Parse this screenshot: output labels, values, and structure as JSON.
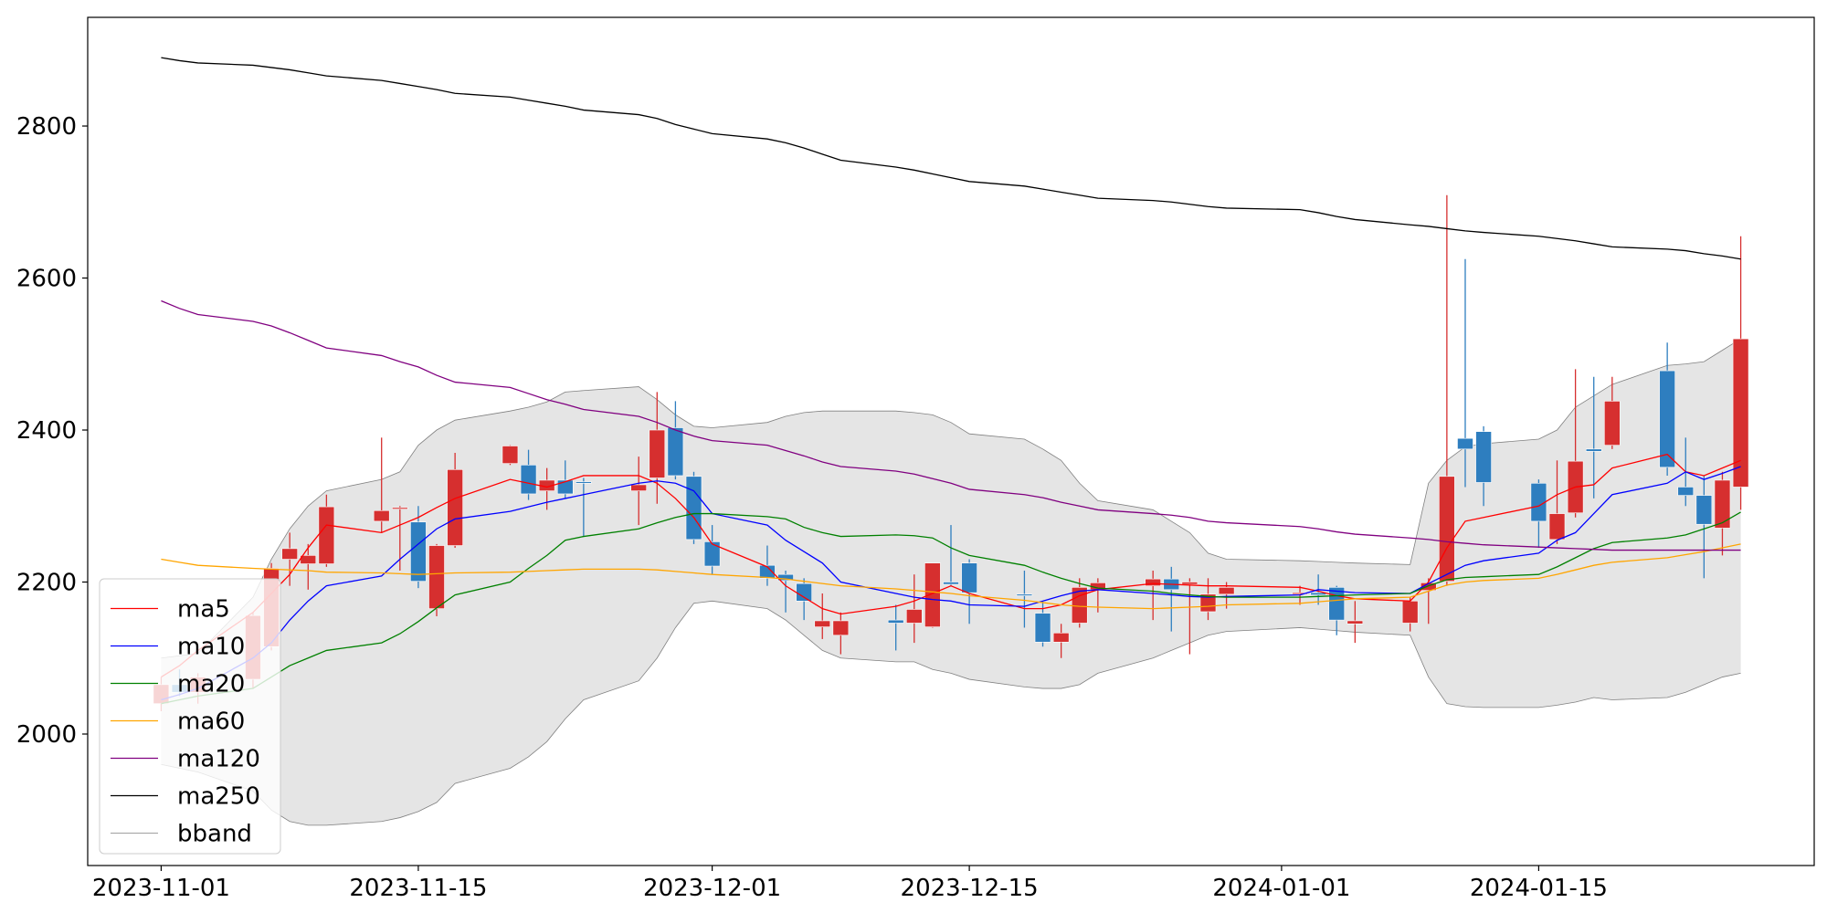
{
  "chart_data": {
    "type": "candlestick",
    "x": [
      "2023-11-01",
      "2023-11-02",
      "2023-11-03",
      "2023-11-06",
      "2023-11-07",
      "2023-11-08",
      "2023-11-09",
      "2023-11-10",
      "2023-11-13",
      "2023-11-14",
      "2023-11-15",
      "2023-11-16",
      "2023-11-17",
      "2023-11-20",
      "2023-11-21",
      "2023-11-22",
      "2023-11-23",
      "2023-11-24",
      "2023-11-27",
      "2023-11-28",
      "2023-11-29",
      "2023-11-30",
      "2023-12-01",
      "2023-12-04",
      "2023-12-05",
      "2023-12-06",
      "2023-12-07",
      "2023-12-08",
      "2023-12-11",
      "2023-12-12",
      "2023-12-13",
      "2023-12-14",
      "2023-12-15",
      "2023-12-18",
      "2023-12-19",
      "2023-12-20",
      "2023-12-21",
      "2023-12-22",
      "2023-12-25",
      "2023-12-26",
      "2023-12-27",
      "2023-12-28",
      "2023-12-29",
      "2024-01-02",
      "2024-01-03",
      "2024-01-04",
      "2024-01-05",
      "2024-01-08",
      "2024-01-09",
      "2024-01-10",
      "2024-01-11",
      "2024-01-12",
      "2024-01-15",
      "2024-01-16",
      "2024-01-17",
      "2024-01-18",
      "2024-01-19",
      "2024-01-22",
      "2024-01-23",
      "2024-01-24",
      "2024-01-25",
      "2024-01-26"
    ],
    "candles": {
      "up_color": "#d62f2f",
      "down_color": "#2e7ebf",
      "open": [
        2040,
        2065,
        2055,
        2072,
        2115,
        2230,
        2224,
        2224,
        2280,
        2296,
        2279,
        2165,
        2248,
        2356,
        2354,
        2320,
        2334,
        2332,
        2320,
        2337,
        2403,
        2339,
        2253,
        2222,
        2210,
        2198,
        2141,
        2130,
        2150,
        2146,
        2141,
        2200,
        2225,
        2184,
        2159,
        2121,
        2146,
        2190,
        2195,
        2204,
        2197,
        2161,
        2184,
        2184,
        2186,
        2193,
        2145,
        2146,
        2189,
        2201,
        2389,
        2398,
        2330,
        2256,
        2291,
        2375,
        2380,
        2478,
        2325,
        2314,
        2271,
        2325
      ],
      "high": [
        2075,
        2085,
        2080,
        2160,
        2225,
        2265,
        2250,
        2315,
        2390,
        2300,
        2300,
        2250,
        2370,
        2380,
        2374,
        2350,
        2360,
        2337,
        2365,
        2450,
        2438,
        2345,
        2275,
        2248,
        2215,
        2205,
        2185,
        2160,
        2170,
        2210,
        2225,
        2275,
        2230,
        2215,
        2175,
        2145,
        2205,
        2205,
        2215,
        2220,
        2205,
        2205,
        2200,
        2195,
        2210,
        2195,
        2175,
        2180,
        2205,
        2709,
        2625,
        2405,
        2335,
        2360,
        2480,
        2470,
        2470,
        2515,
        2390,
        2340,
        2345,
        2655
      ],
      "low": [
        2030,
        2050,
        2040,
        2060,
        2110,
        2195,
        2190,
        2220,
        2265,
        2215,
        2192,
        2155,
        2245,
        2354,
        2308,
        2295,
        2310,
        2260,
        2275,
        2303,
        2335,
        2250,
        2210,
        2195,
        2160,
        2150,
        2125,
        2105,
        2110,
        2120,
        2140,
        2195,
        2145,
        2140,
        2115,
        2100,
        2140,
        2160,
        2150,
        2135,
        2105,
        2150,
        2165,
        2170,
        2170,
        2130,
        2120,
        2135,
        2145,
        2195,
        2325,
        2300,
        2245,
        2250,
        2285,
        2310,
        2375,
        2340,
        2300,
        2205,
        2235,
        2295
      ],
      "close": [
        2065,
        2055,
        2075,
        2156,
        2218,
        2244,
        2235,
        2299,
        2294,
        2298,
        2201,
        2248,
        2348,
        2379,
        2316,
        2334,
        2316,
        2330,
        2328,
        2400,
        2340,
        2256,
        2221,
        2205,
        2202,
        2175,
        2149,
        2149,
        2146,
        2164,
        2225,
        2197,
        2186,
        2182,
        2121,
        2133,
        2193,
        2199,
        2204,
        2190,
        2200,
        2184,
        2193,
        2186,
        2183,
        2150,
        2149,
        2175,
        2199,
        2339,
        2375,
        2331,
        2280,
        2290,
        2359,
        2372,
        2438,
        2351,
        2314,
        2276,
        2334,
        2520
      ]
    },
    "series": [
      {
        "name": "ma5",
        "color": "red",
        "values": [
          2075,
          2090,
          2110,
          2160,
          2185,
          2210,
          2245,
          2275,
          2265,
          2275,
          2285,
          2298,
          2310,
          2335,
          2330,
          2325,
          2332,
          2340,
          2340,
          2330,
          2310,
          2285,
          2250,
          2220,
          2195,
          2180,
          2165,
          2158,
          2168,
          2175,
          2185,
          2195,
          2185,
          2165,
          2165,
          2170,
          2182,
          2190,
          2198,
          2197,
          2196,
          2195,
          2195,
          2193,
          2188,
          2182,
          2178,
          2175,
          2200,
          2245,
          2280,
          2285,
          2300,
          2315,
          2325,
          2328,
          2350,
          2368,
          2345,
          2340,
          2350,
          2360
        ]
      },
      {
        "name": "ma10",
        "color": "blue",
        "values": [
          2045,
          2052,
          2060,
          2100,
          2120,
          2150,
          2175,
          2195,
          2208,
          2230,
          2250,
          2270,
          2283,
          2293,
          2299,
          2305,
          2310,
          2315,
          2330,
          2333,
          2330,
          2320,
          2290,
          2275,
          2255,
          2240,
          2225,
          2200,
          2185,
          2180,
          2177,
          2175,
          2170,
          2168,
          2175,
          2182,
          2188,
          2190,
          2185,
          2183,
          2181,
          2180,
          2181,
          2183,
          2190,
          2188,
          2186,
          2185,
          2198,
          2210,
          2222,
          2228,
          2238,
          2255,
          2265,
          2290,
          2315,
          2330,
          2345,
          2335,
          2343,
          2352
        ]
      },
      {
        "name": "ma20",
        "color": "green",
        "values": [
          2040,
          2045,
          2050,
          2060,
          2075,
          2090,
          2100,
          2110,
          2120,
          2132,
          2148,
          2166,
          2183,
          2200,
          2218,
          2235,
          2255,
          2260,
          2270,
          2278,
          2285,
          2290,
          2290,
          2286,
          2283,
          2272,
          2265,
          2260,
          2262,
          2261,
          2258,
          2245,
          2235,
          2222,
          2213,
          2205,
          2198,
          2192,
          2188,
          2185,
          2183,
          2181,
          2180,
          2180,
          2181,
          2182,
          2183,
          2185,
          2195,
          2203,
          2206,
          2207,
          2210,
          2220,
          2232,
          2244,
          2252,
          2258,
          2262,
          2270,
          2278,
          2292
        ]
      },
      {
        "name": "ma60",
        "color": "orange",
        "values": [
          2230,
          2226,
          2222,
          2218,
          2217,
          2216,
          2215,
          2213,
          2212,
          2211,
          2210,
          2211,
          2212,
          2213,
          2214,
          2215,
          2216,
          2217,
          2217,
          2216,
          2214,
          2212,
          2210,
          2206,
          2204,
          2201,
          2198,
          2195,
          2191,
          2189,
          2187,
          2185,
          2182,
          2176,
          2173,
          2170,
          2168,
          2167,
          2165,
          2166,
          2167,
          2168,
          2170,
          2172,
          2174,
          2176,
          2178,
          2180,
          2188,
          2196,
          2200,
          2202,
          2205,
          2210,
          2216,
          2222,
          2226,
          2232,
          2236,
          2240,
          2245,
          2250
        ]
      },
      {
        "name": "ma120",
        "color": "purple",
        "values": [
          2570,
          2560,
          2552,
          2543,
          2537,
          2528,
          2518,
          2508,
          2498,
          2490,
          2483,
          2472,
          2463,
          2456,
          2448,
          2440,
          2434,
          2427,
          2418,
          2410,
          2400,
          2392,
          2386,
          2380,
          2373,
          2366,
          2358,
          2352,
          2346,
          2342,
          2336,
          2330,
          2322,
          2315,
          2311,
          2305,
          2300,
          2295,
          2290,
          2288,
          2285,
          2280,
          2278,
          2273,
          2270,
          2266,
          2263,
          2258,
          2256,
          2253,
          2251,
          2249,
          2246,
          2245,
          2244,
          2243,
          2242,
          2242,
          2242,
          2242,
          2242,
          2242
        ]
      },
      {
        "name": "ma250",
        "color": "black",
        "values": [
          2890,
          2886,
          2883,
          2880,
          2877,
          2874,
          2870,
          2866,
          2860,
          2856,
          2852,
          2848,
          2843,
          2838,
          2834,
          2830,
          2826,
          2821,
          2815,
          2810,
          2802,
          2796,
          2790,
          2783,
          2778,
          2771,
          2763,
          2755,
          2746,
          2742,
          2737,
          2732,
          2727,
          2721,
          2717,
          2713,
          2709,
          2705,
          2702,
          2700,
          2697,
          2694,
          2692,
          2690,
          2686,
          2681,
          2677,
          2670,
          2668,
          2665,
          2662,
          2660,
          2655,
          2652,
          2649,
          2645,
          2641,
          2638,
          2636,
          2632,
          2629,
          2625
        ]
      }
    ],
    "bband": {
      "name": "bband",
      "color": "#808080",
      "fill": "#e5e5e5",
      "upper": [
        2100,
        2103,
        2106,
        2180,
        2230,
        2270,
        2300,
        2320,
        2335,
        2345,
        2380,
        2400,
        2413,
        2425,
        2430,
        2437,
        2450,
        2452,
        2457,
        2440,
        2420,
        2405,
        2403,
        2410,
        2418,
        2423,
        2425,
        2425,
        2425,
        2423,
        2420,
        2410,
        2395,
        2388,
        2375,
        2360,
        2330,
        2307,
        2295,
        2280,
        2265,
        2238,
        2230,
        2228,
        2227,
        2226,
        2225,
        2223,
        2330,
        2360,
        2378,
        2382,
        2388,
        2400,
        2430,
        2445,
        2460,
        2485,
        2487,
        2490,
        2505,
        2520
      ],
      "lower": [
        1960,
        1955,
        1950,
        1925,
        1900,
        1885,
        1880,
        1880,
        1885,
        1890,
        1898,
        1910,
        1935,
        1955,
        1970,
        1990,
        2020,
        2045,
        2070,
        2100,
        2140,
        2172,
        2175,
        2165,
        2150,
        2130,
        2110,
        2100,
        2095,
        2095,
        2085,
        2080,
        2072,
        2062,
        2060,
        2060,
        2065,
        2080,
        2100,
        2110,
        2120,
        2130,
        2135,
        2140,
        2138,
        2136,
        2134,
        2130,
        2075,
        2040,
        2036,
        2035,
        2035,
        2038,
        2042,
        2048,
        2045,
        2048,
        2055,
        2065,
        2075,
        2080
      ]
    },
    "xlim": [
      "2023-10-28",
      "2024-01-30"
    ],
    "xticks": [
      "2023-11-01",
      "2023-11-15",
      "2023-12-01",
      "2023-12-15",
      "2024-01-01",
      "2024-01-15"
    ],
    "ylim": [
      1827,
      2943
    ],
    "yticks": [
      2000,
      2200,
      2400,
      2600,
      2800
    ],
    "legend": "lower left"
  }
}
